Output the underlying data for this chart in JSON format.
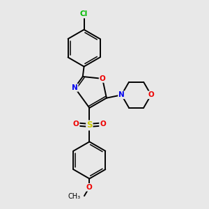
{
  "background_color": "#e8e8e8",
  "bond_color": "#000000",
  "atom_colors": {
    "Cl": "#00bb00",
    "N": "#0000ee",
    "O": "#ee0000",
    "S": "#cccc00",
    "C": "#000000"
  },
  "figsize": [
    3.0,
    3.0
  ],
  "dpi": 100
}
